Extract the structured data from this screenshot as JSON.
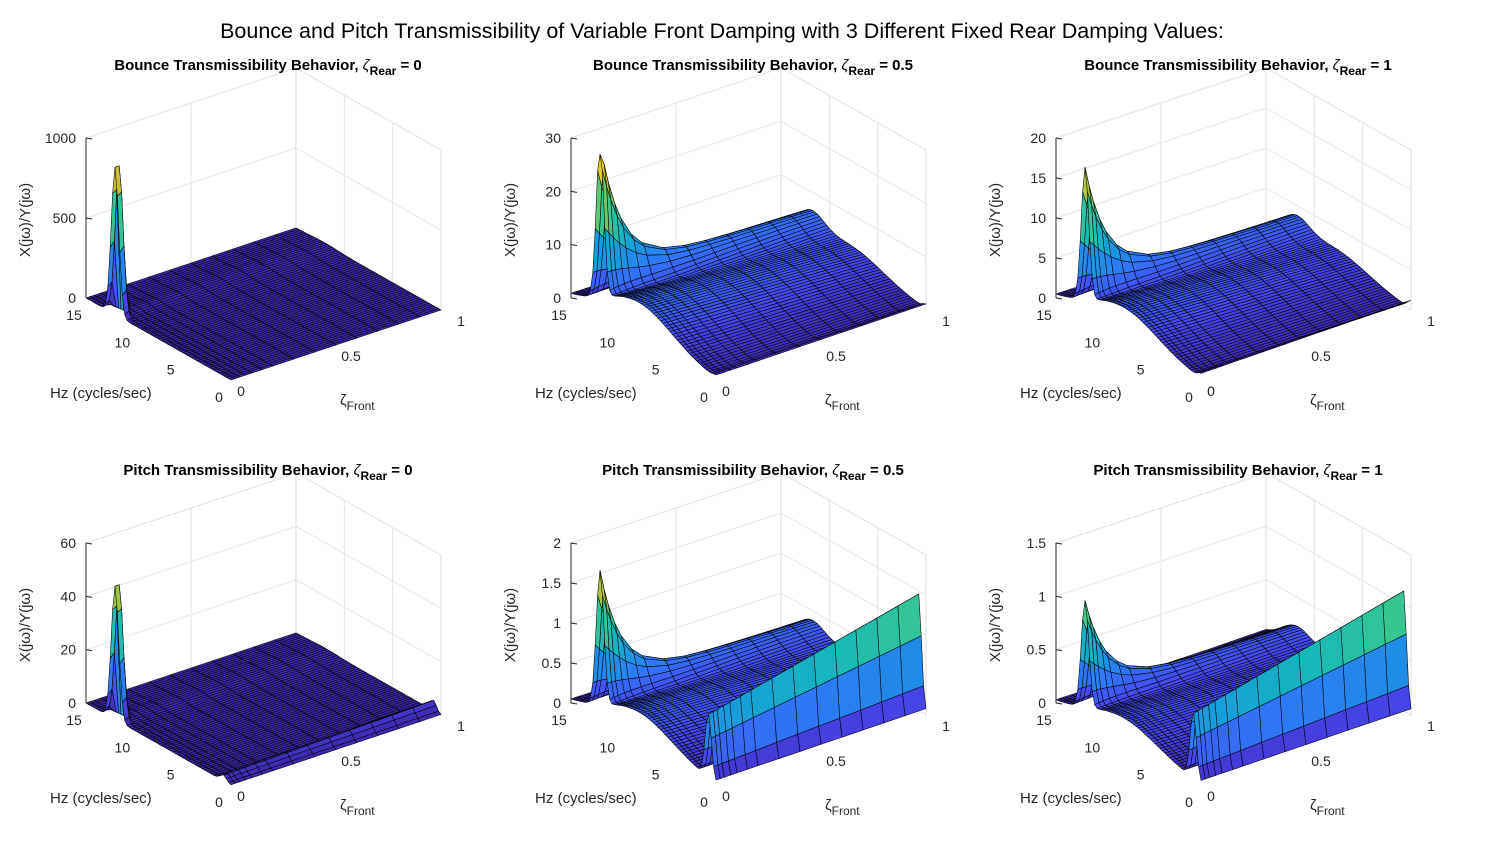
{
  "figure": {
    "title": "Bounce and Pitch Transmissibility of Variable Front Damping with 3 Different Fixed Rear Damping Values:"
  },
  "chart_data": [
    {
      "type": "surface",
      "title_main": "Bounce Transmissibility Behavior,",
      "title_zeta": "ζ",
      "title_sub": "Rear",
      "title_value": "= 0",
      "xlabel_main": "ζ",
      "xlabel_sub": "Front",
      "ylabel": "Hz (cycles/sec)",
      "zlabel": "X(jω)/Y(jω)",
      "xlim": [
        0,
        1
      ],
      "ylim": [
        0,
        15
      ],
      "zlim": [
        0,
        1000
      ],
      "x_ticks": [
        "0",
        "0.5",
        "1"
      ],
      "y_ticks": [
        "0",
        "5",
        "10",
        "15"
      ],
      "z_ticks": [
        "0",
        "500",
        "1000"
      ],
      "colormap": "parula",
      "rear_damping": 0,
      "front_damping": [
        0,
        0.05,
        0.1,
        0.2,
        0.3,
        0.4,
        0.5,
        0.6,
        0.7,
        0.8,
        0.9,
        1
      ],
      "peak": {
        "zeta_front": 0,
        "hz": 12,
        "value": 920
      },
      "second_ridge": {
        "hz": 0,
        "value": 0
      }
    },
    {
      "type": "surface",
      "title_main": "Bounce Transmissibility Behavior,",
      "title_zeta": "ζ",
      "title_sub": "Rear",
      "title_value": "= 0.5",
      "xlabel_main": "ζ",
      "xlabel_sub": "Front",
      "ylabel": "Hz (cycles/sec)",
      "zlabel": "X(jω)/Y(jω)",
      "xlim": [
        0,
        1
      ],
      "ylim": [
        0,
        15
      ],
      "zlim": [
        0,
        30
      ],
      "x_ticks": [
        "0",
        "0.5",
        "1"
      ],
      "y_ticks": [
        "0",
        "5",
        "10",
        "15"
      ],
      "z_ticks": [
        "0",
        "10",
        "20",
        "30"
      ],
      "colormap": "parula",
      "rear_damping": 0.5,
      "front_damping": [
        0,
        0.05,
        0.1,
        0.2,
        0.3,
        0.4,
        0.5,
        0.6,
        0.7,
        0.8,
        0.9,
        1
      ],
      "peak": {
        "zeta_front": 0,
        "hz": 12,
        "value": 29
      },
      "second_ridge": {
        "hz": 0,
        "value": 0.8
      }
    },
    {
      "type": "surface",
      "title_main": "Bounce Transmissibility Behavior,",
      "title_zeta": "ζ",
      "title_sub": "Rear",
      "title_value": "= 1",
      "xlabel_main": "ζ",
      "xlabel_sub": "Front",
      "ylabel": "Hz (cycles/sec)",
      "zlabel": "X(jω)/Y(jω)",
      "xlim": [
        0,
        1
      ],
      "ylim": [
        0,
        15
      ],
      "zlim": [
        0,
        20
      ],
      "x_ticks": [
        "0",
        "0.5",
        "1"
      ],
      "y_ticks": [
        "0",
        "5",
        "10",
        "15"
      ],
      "z_ticks": [
        "0",
        "5",
        "10",
        "15",
        "20"
      ],
      "colormap": "parula",
      "rear_damping": 1,
      "front_damping": [
        0,
        0.05,
        0.1,
        0.2,
        0.3,
        0.4,
        0.5,
        0.6,
        0.7,
        0.8,
        0.9,
        1
      ],
      "peak": {
        "zeta_front": 0,
        "hz": 12,
        "value": 16.5
      },
      "second_ridge": {
        "hz": 0,
        "value": 1
      }
    },
    {
      "type": "surface",
      "title_main": "Pitch Transmissibility Behavior,",
      "title_zeta": "ζ",
      "title_sub": "Rear",
      "title_value": "= 0",
      "xlabel_main": "ζ",
      "xlabel_sub": "Front",
      "ylabel": "Hz (cycles/sec)",
      "zlabel": "X(jω)/Y(jω)",
      "xlim": [
        0,
        1
      ],
      "ylim": [
        0,
        15
      ],
      "zlim": [
        0,
        60
      ],
      "x_ticks": [
        "0",
        "0.5",
        "1"
      ],
      "y_ticks": [
        "0",
        "5",
        "10",
        "15"
      ],
      "z_ticks": [
        "0",
        "20",
        "40",
        "60"
      ],
      "colormap": "parula",
      "rear_damping": 0,
      "front_damping": [
        0,
        0.05,
        0.1,
        0.2,
        0.3,
        0.4,
        0.5,
        0.6,
        0.7,
        0.8,
        0.9,
        1
      ],
      "peak": {
        "zeta_front": 0,
        "hz": 12,
        "value": 50
      },
      "second_ridge": {
        "hz": 0.8,
        "value": 4
      }
    },
    {
      "type": "surface",
      "title_main": "Pitch Transmissibility Behavior,",
      "title_zeta": "ζ",
      "title_sub": "Rear",
      "title_value": "= 0.5",
      "xlabel_main": "ζ",
      "xlabel_sub": "Front",
      "ylabel": "Hz (cycles/sec)",
      "zlabel": "X(jω)/Y(jω)",
      "xlim": [
        0,
        1
      ],
      "ylim": [
        0,
        15
      ],
      "zlim": [
        0,
        2
      ],
      "x_ticks": [
        "0",
        "0.5",
        "1"
      ],
      "y_ticks": [
        "0",
        "5",
        "10",
        "15"
      ],
      "z_ticks": [
        "0",
        "0.5",
        "1",
        "1.5",
        "2"
      ],
      "colormap": "parula",
      "rear_damping": 0.5,
      "front_damping": [
        0,
        0.05,
        0.1,
        0.2,
        0.3,
        0.4,
        0.5,
        0.6,
        0.7,
        0.8,
        0.9,
        1
      ],
      "peak": {
        "zeta_front": 0,
        "hz": 12,
        "value": 1.67
      },
      "second_ridge": {
        "hz": 0.8,
        "value": 1.45
      }
    },
    {
      "type": "surface",
      "title_main": "Pitch Transmissibility Behavior,",
      "title_zeta": "ζ",
      "title_sub": "Rear",
      "title_value": "= 1",
      "xlabel_main": "ζ",
      "xlabel_sub": "Front",
      "ylabel": "Hz (cycles/sec)",
      "zlabel": "X(jω)/Y(jω)",
      "xlim": [
        0,
        1
      ],
      "ylim": [
        0,
        15
      ],
      "zlim": [
        0,
        1.5
      ],
      "x_ticks": [
        "0",
        "0.5",
        "1"
      ],
      "y_ticks": [
        "0",
        "5",
        "10",
        "15"
      ],
      "z_ticks": [
        "0",
        "0.5",
        "1",
        "1.5"
      ],
      "colormap": "parula",
      "rear_damping": 1,
      "front_damping": [
        0,
        0.05,
        0.1,
        0.2,
        0.3,
        0.4,
        0.5,
        0.6,
        0.7,
        0.8,
        0.9,
        1
      ],
      "peak": {
        "zeta_front": 0,
        "hz": 12,
        "value": 1.0
      },
      "second_ridge": {
        "hz": 0.8,
        "value": 1.12
      }
    }
  ]
}
